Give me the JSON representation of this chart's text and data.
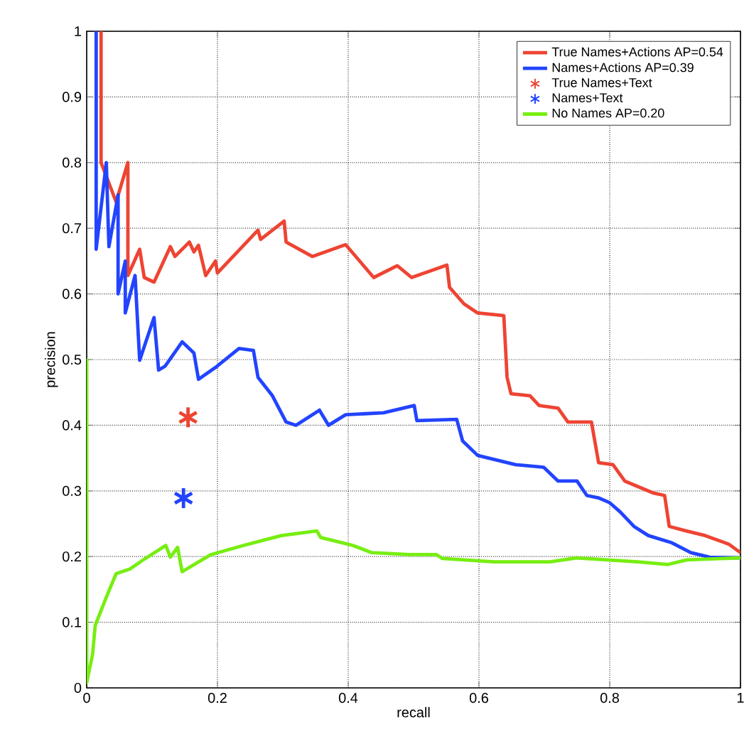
{
  "chart_data": {
    "type": "line",
    "xlabel": "recall",
    "ylabel": "precision",
    "xlim": [
      0,
      1
    ],
    "ylim": [
      0,
      1
    ],
    "xticks": [
      0,
      0.2,
      0.4,
      0.6,
      0.8,
      1
    ],
    "yticks": [
      0,
      0.1,
      0.2,
      0.3,
      0.4,
      0.5,
      0.6,
      0.7,
      0.8,
      0.9,
      1
    ],
    "grid": true,
    "legend": "top right",
    "marker": "none",
    "line_style": "solid",
    "series": [
      {
        "name": "True Names+Actions AP=0.54",
        "color": "#ee4433",
        "x": [
          0.022,
          0.022,
          0.045,
          0.063,
          0.063,
          0.081,
          0.088,
          0.103,
          0.128,
          0.135,
          0.157,
          0.164,
          0.171,
          0.182,
          0.197,
          0.2,
          0.262,
          0.266,
          0.302,
          0.305,
          0.345,
          0.396,
          0.439,
          0.475,
          0.497,
          0.551,
          0.555,
          0.577,
          0.598,
          0.638,
          0.643,
          0.649,
          0.678,
          0.692,
          0.721,
          0.736,
          0.772,
          0.783,
          0.805,
          0.823,
          0.866,
          0.884,
          0.891,
          0.917,
          0.946,
          0.982,
          1.0
        ],
        "values": [
          1.0,
          0.8,
          0.74,
          0.8,
          0.628,
          0.668,
          0.625,
          0.618,
          0.672,
          0.657,
          0.679,
          0.664,
          0.674,
          0.628,
          0.65,
          0.632,
          0.697,
          0.683,
          0.711,
          0.679,
          0.657,
          0.675,
          0.625,
          0.643,
          0.625,
          0.644,
          0.61,
          0.585,
          0.571,
          0.567,
          0.473,
          0.448,
          0.445,
          0.43,
          0.426,
          0.405,
          0.405,
          0.343,
          0.34,
          0.315,
          0.297,
          0.293,
          0.246,
          0.239,
          0.232,
          0.219,
          0.206
        ]
      },
      {
        "name": "Names+Actions AP=0.39",
        "color": "#2244ff",
        "x": [
          0.0145,
          0.0145,
          0.03,
          0.034,
          0.048,
          0.048,
          0.059,
          0.059,
          0.074,
          0.081,
          0.103,
          0.11,
          0.12,
          0.146,
          0.164,
          0.171,
          0.197,
          0.233,
          0.255,
          0.262,
          0.284,
          0.305,
          0.32,
          0.356,
          0.37,
          0.396,
          0.454,
          0.501,
          0.505,
          0.566,
          0.575,
          0.598,
          0.627,
          0.656,
          0.699,
          0.721,
          0.75,
          0.765,
          0.784,
          0.8,
          0.816,
          0.837,
          0.859,
          0.895,
          0.924,
          0.953,
          1.0
        ],
        "values": [
          1.0,
          0.668,
          0.8,
          0.672,
          0.751,
          0.6,
          0.65,
          0.571,
          0.628,
          0.499,
          0.564,
          0.484,
          0.49,
          0.527,
          0.51,
          0.47,
          0.488,
          0.517,
          0.514,
          0.473,
          0.445,
          0.405,
          0.4,
          0.423,
          0.4,
          0.416,
          0.419,
          0.43,
          0.407,
          0.409,
          0.376,
          0.354,
          0.347,
          0.34,
          0.336,
          0.315,
          0.315,
          0.293,
          0.289,
          0.282,
          0.268,
          0.246,
          0.232,
          0.221,
          0.206,
          0.199,
          0.198
        ]
      },
      {
        "name": "True Names+Text",
        "type": "scatter",
        "marker": "cross",
        "color": "#ee4433",
        "x": [
          0.155
        ],
        "values": [
          0.412
        ]
      },
      {
        "name": "Names+Text",
        "type": "scatter",
        "marker": "cross",
        "color": "#2244ff",
        "x": [
          0.148
        ],
        "values": [
          0.289
        ]
      },
      {
        "name": "No Names AP=0.20",
        "color": "#77ee11",
        "x": [
          0.0,
          0.0,
          0.009,
          0.013,
          0.03,
          0.045,
          0.066,
          0.088,
          0.121,
          0.128,
          0.139,
          0.146,
          0.19,
          0.24,
          0.298,
          0.352,
          0.358,
          0.407,
          0.436,
          0.493,
          0.535,
          0.544,
          0.623,
          0.709,
          0.749,
          0.843,
          0.889,
          0.918,
          1.0
        ],
        "values": [
          0.502,
          0.008,
          0.051,
          0.095,
          0.138,
          0.174,
          0.181,
          0.196,
          0.217,
          0.199,
          0.214,
          0.177,
          0.203,
          0.217,
          0.232,
          0.239,
          0.229,
          0.217,
          0.206,
          0.203,
          0.203,
          0.197,
          0.192,
          0.192,
          0.198,
          0.192,
          0.188,
          0.195,
          0.198
        ]
      }
    ]
  }
}
